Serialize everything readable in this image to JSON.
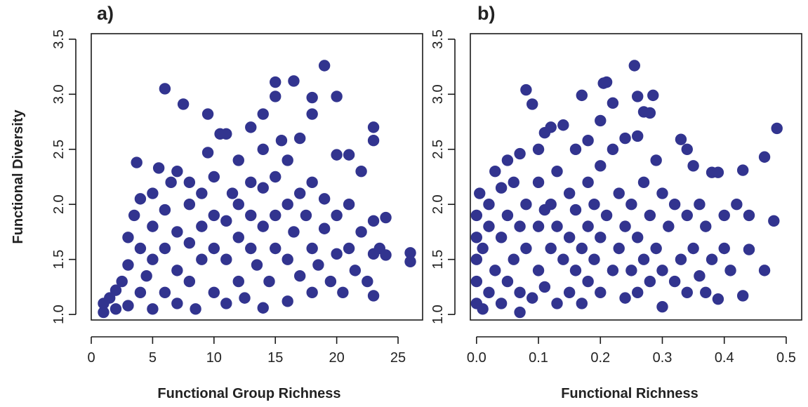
{
  "figure": {
    "ylabel": "Functional Diversity",
    "point_color": "#32348f"
  },
  "chart_data": [
    {
      "type": "scatter",
      "panel_label": "a)",
      "xlabel": "Functional Group Richness",
      "ylabel": "Functional Diversity",
      "xlim": [
        0,
        27
      ],
      "ylim": [
        0.95,
        3.55
      ],
      "xticks": [
        0,
        5,
        10,
        15,
        20,
        25
      ],
      "xtick_labels": [
        "0",
        "5",
        "10",
        "15",
        "20",
        "25"
      ],
      "yticks": [
        1.0,
        1.5,
        2.0,
        2.5,
        3.0,
        3.5
      ],
      "ytick_labels": [
        "1.0",
        "1.5",
        "2.0",
        "2.5",
        "3.0",
        "3.5"
      ],
      "grid": false,
      "series": [
        {
          "color": "#32348f",
          "points": [
            [
              1,
              1.02
            ],
            [
              1,
              1.1
            ],
            [
              1.5,
              1.15
            ],
            [
              2,
              1.05
            ],
            [
              2,
              1.22
            ],
            [
              2.5,
              1.3
            ],
            [
              3,
              1.08
            ],
            [
              3,
              1.45
            ],
            [
              3,
              1.7
            ],
            [
              3.5,
              1.9
            ],
            [
              3.7,
              2.38
            ],
            [
              4,
              1.2
            ],
            [
              4,
              1.6
            ],
            [
              4,
              2.05
            ],
            [
              4.5,
              1.35
            ],
            [
              5,
              1.05
            ],
            [
              5,
              1.5
            ],
            [
              5,
              1.8
            ],
            [
              5,
              2.1
            ],
            [
              5.5,
              2.33
            ],
            [
              6,
              1.2
            ],
            [
              6,
              1.6
            ],
            [
              6,
              1.95
            ],
            [
              6,
              3.05
            ],
            [
              6.5,
              2.2
            ],
            [
              7,
              1.1
            ],
            [
              7,
              1.4
            ],
            [
              7,
              1.75
            ],
            [
              7,
              2.3
            ],
            [
              7.5,
              2.91
            ],
            [
              8,
              1.3
            ],
            [
              8,
              1.65
            ],
            [
              8,
              2.0
            ],
            [
              8,
              2.2
            ],
            [
              8.5,
              1.05
            ],
            [
              9,
              1.5
            ],
            [
              9,
              1.8
            ],
            [
              9,
              2.1
            ],
            [
              9.5,
              2.47
            ],
            [
              9.5,
              2.82
            ],
            [
              10,
              1.2
            ],
            [
              10,
              1.6
            ],
            [
              10,
              1.9
            ],
            [
              10,
              2.25
            ],
            [
              10.5,
              2.64
            ],
            [
              11,
              1.1
            ],
            [
              11,
              1.5
            ],
            [
              11,
              1.85
            ],
            [
              11,
              2.64
            ],
            [
              11.5,
              2.1
            ],
            [
              12,
              1.3
            ],
            [
              12,
              1.7
            ],
            [
              12,
              2.0
            ],
            [
              12,
              2.4
            ],
            [
              12.5,
              1.15
            ],
            [
              13,
              1.6
            ],
            [
              13,
              1.9
            ],
            [
              13,
              2.2
            ],
            [
              13,
              2.7
            ],
            [
              13.5,
              1.45
            ],
            [
              14,
              1.06
            ],
            [
              14,
              1.8
            ],
            [
              14,
              2.15
            ],
            [
              14,
              2.5
            ],
            [
              14,
              2.82
            ],
            [
              14.5,
              1.3
            ],
            [
              15,
              1.6
            ],
            [
              15,
              1.9
            ],
            [
              15,
              2.25
            ],
            [
              15,
              2.98
            ],
            [
              15,
              3.11
            ],
            [
              15.5,
              2.58
            ],
            [
              16,
              1.12
            ],
            [
              16,
              1.5
            ],
            [
              16,
              2.0
            ],
            [
              16,
              2.4
            ],
            [
              16.5,
              1.75
            ],
            [
              16.5,
              3.12
            ],
            [
              17,
              1.35
            ],
            [
              17,
              2.1
            ],
            [
              17,
              2.6
            ],
            [
              17.5,
              1.9
            ],
            [
              18,
              1.2
            ],
            [
              18,
              1.6
            ],
            [
              18,
              2.2
            ],
            [
              18,
              2.82
            ],
            [
              18,
              2.97
            ],
            [
              18.5,
              1.45
            ],
            [
              19,
              1.78
            ],
            [
              19,
              2.05
            ],
            [
              19,
              3.26
            ],
            [
              19.5,
              1.3
            ],
            [
              20,
              1.55
            ],
            [
              20,
              1.9
            ],
            [
              20,
              2.45
            ],
            [
              20,
              2.98
            ],
            [
              20.5,
              1.2
            ],
            [
              21,
              1.6
            ],
            [
              21,
              2.0
            ],
            [
              21,
              2.45
            ],
            [
              21.5,
              1.4
            ],
            [
              22,
              1.75
            ],
            [
              22,
              2.3
            ],
            [
              22.5,
              1.3
            ],
            [
              23,
              1.17
            ],
            [
              23,
              1.55
            ],
            [
              23,
              1.85
            ],
            [
              23,
              2.58
            ],
            [
              23,
              2.7
            ],
            [
              23.5,
              1.6
            ],
            [
              24,
              1.54
            ],
            [
              24,
              1.88
            ],
            [
              26,
              1.56
            ],
            [
              26,
              1.48
            ]
          ]
        }
      ]
    },
    {
      "type": "scatter",
      "panel_label": "b)",
      "xlabel": "Functional Richness",
      "ylabel": "Functional Diversity",
      "xlim": [
        -0.01,
        0.525
      ],
      "ylim": [
        0.95,
        3.55
      ],
      "xticks": [
        0.0,
        0.1,
        0.2,
        0.3,
        0.4,
        0.5
      ],
      "xtick_labels": [
        "0.0",
        "0.1",
        "0.2",
        "0.3",
        "0.4",
        "0.5"
      ],
      "yticks": [
        1.0,
        1.5,
        2.0,
        2.5,
        3.0,
        3.5
      ],
      "ytick_labels": [
        "1.0",
        "1.5",
        "2.0",
        "2.5",
        "3.0",
        "3.5"
      ],
      "grid": false,
      "series": [
        {
          "color": "#32348f",
          "points": [
            [
              0,
              1.1
            ],
            [
              0,
              1.3
            ],
            [
              0,
              1.5
            ],
            [
              0,
              1.7
            ],
            [
              0,
              1.9
            ],
            [
              0.005,
              2.1
            ],
            [
              0.01,
              1.05
            ],
            [
              0.01,
              1.6
            ],
            [
              0.02,
              1.2
            ],
            [
              0.02,
              1.8
            ],
            [
              0.02,
              2.0
            ],
            [
              0.03,
              1.4
            ],
            [
              0.03,
              2.3
            ],
            [
              0.04,
              1.1
            ],
            [
              0.04,
              1.7
            ],
            [
              0.04,
              2.15
            ],
            [
              0.05,
              1.3
            ],
            [
              0.05,
              1.9
            ],
            [
              0.05,
              2.4
            ],
            [
              0.06,
              1.5
            ],
            [
              0.06,
              2.2
            ],
            [
              0.07,
              1.02
            ],
            [
              0.07,
              1.2
            ],
            [
              0.07,
              1.8
            ],
            [
              0.07,
              2.46
            ],
            [
              0.08,
              1.6
            ],
            [
              0.08,
              2.0
            ],
            [
              0.08,
              3.04
            ],
            [
              0.09,
              1.15
            ],
            [
              0.09,
              2.91
            ],
            [
              0.1,
              1.4
            ],
            [
              0.1,
              1.8
            ],
            [
              0.1,
              2.2
            ],
            [
              0.1,
              2.5
            ],
            [
              0.11,
              1.25
            ],
            [
              0.11,
              1.95
            ],
            [
              0.11,
              2.65
            ],
            [
              0.12,
              1.6
            ],
            [
              0.12,
              2.0
            ],
            [
              0.12,
              2.7
            ],
            [
              0.13,
              1.1
            ],
            [
              0.13,
              1.8
            ],
            [
              0.13,
              2.3
            ],
            [
              0.14,
              1.5
            ],
            [
              0.14,
              2.72
            ],
            [
              0.15,
              1.2
            ],
            [
              0.15,
              1.7
            ],
            [
              0.15,
              2.1
            ],
            [
              0.16,
              1.4
            ],
            [
              0.16,
              1.95
            ],
            [
              0.16,
              2.5
            ],
            [
              0.17,
              1.1
            ],
            [
              0.17,
              1.6
            ],
            [
              0.17,
              2.99
            ],
            [
              0.18,
              1.3
            ],
            [
              0.18,
              1.8
            ],
            [
              0.18,
              2.2
            ],
            [
              0.18,
              2.58
            ],
            [
              0.19,
              1.5
            ],
            [
              0.19,
              2.0
            ],
            [
              0.2,
              1.2
            ],
            [
              0.2,
              1.7
            ],
            [
              0.2,
              2.35
            ],
            [
              0.2,
              2.76
            ],
            [
              0.205,
              3.1
            ],
            [
              0.21,
              3.11
            ],
            [
              0.21,
              1.9
            ],
            [
              0.22,
              1.4
            ],
            [
              0.22,
              2.5
            ],
            [
              0.22,
              2.92
            ],
            [
              0.23,
              1.6
            ],
            [
              0.23,
              2.1
            ],
            [
              0.24,
              1.15
            ],
            [
              0.24,
              1.8
            ],
            [
              0.24,
              2.6
            ],
            [
              0.25,
              1.4
            ],
            [
              0.25,
              2.0
            ],
            [
              0.255,
              3.26
            ],
            [
              0.26,
              1.2
            ],
            [
              0.26,
              1.7
            ],
            [
              0.26,
              2.62
            ],
            [
              0.26,
              2.98
            ],
            [
              0.27,
              1.5
            ],
            [
              0.27,
              2.2
            ],
            [
              0.27,
              2.84
            ],
            [
              0.28,
              1.3
            ],
            [
              0.28,
              1.9
            ],
            [
              0.28,
              2.83
            ],
            [
              0.285,
              2.99
            ],
            [
              0.29,
              1.6
            ],
            [
              0.29,
              2.4
            ],
            [
              0.3,
              1.07
            ],
            [
              0.3,
              1.4
            ],
            [
              0.3,
              2.1
            ],
            [
              0.31,
              1.8
            ],
            [
              0.32,
              1.3
            ],
            [
              0.32,
              2.0
            ],
            [
              0.33,
              1.5
            ],
            [
              0.33,
              2.59
            ],
            [
              0.34,
              1.2
            ],
            [
              0.34,
              1.9
            ],
            [
              0.34,
              2.5
            ],
            [
              0.35,
              1.6
            ],
            [
              0.35,
              2.35
            ],
            [
              0.36,
              1.35
            ],
            [
              0.36,
              2.0
            ],
            [
              0.37,
              1.2
            ],
            [
              0.37,
              1.8
            ],
            [
              0.38,
              1.5
            ],
            [
              0.38,
              2.29
            ],
            [
              0.39,
              1.14
            ],
            [
              0.39,
              2.29
            ],
            [
              0.4,
              1.6
            ],
            [
              0.4,
              1.9
            ],
            [
              0.41,
              1.4
            ],
            [
              0.42,
              2.0
            ],
            [
              0.43,
              1.17
            ],
            [
              0.43,
              2.31
            ],
            [
              0.44,
              1.59
            ],
            [
              0.44,
              1.9
            ],
            [
              0.465,
              1.4
            ],
            [
              0.465,
              2.43
            ],
            [
              0.48,
              1.85
            ],
            [
              0.485,
              2.69
            ]
          ]
        }
      ]
    }
  ]
}
